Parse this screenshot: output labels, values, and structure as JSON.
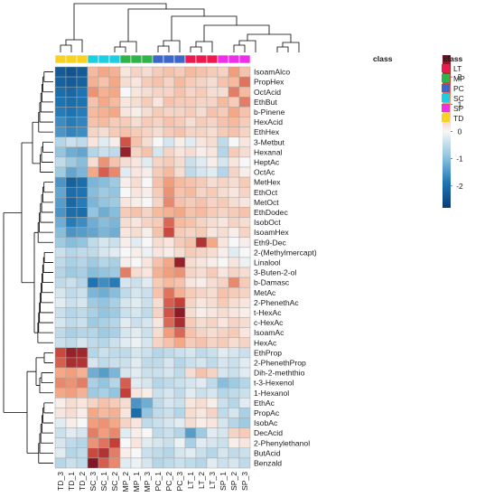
{
  "chart_data": {
    "type": "heatmap",
    "annotation_label": "class",
    "legend_title": "class",
    "classes": [
      {
        "name": "LT",
        "color": "#ee1a4f"
      },
      {
        "name": "MP",
        "color": "#2fb34a"
      },
      {
        "name": "PC",
        "color": "#3d68c9"
      },
      {
        "name": "SC",
        "color": "#1ccfe0"
      },
      {
        "name": "SP",
        "color": "#ee2ee8"
      },
      {
        "name": "TD",
        "color": "#f7d21e"
      }
    ],
    "columns": [
      "TD_3",
      "TD_1",
      "TD_2",
      "SC_3",
      "SC_1",
      "SC_2",
      "MP_2",
      "MP_1",
      "MP_3",
      "PC_1",
      "PC_2",
      "PC_3",
      "LT_1",
      "LT_2",
      "LT_3",
      "SP_1",
      "SP_2",
      "SP_3"
    ],
    "column_class": [
      "TD",
      "TD",
      "TD",
      "SC",
      "SC",
      "SC",
      "MP",
      "MP",
      "MP",
      "PC",
      "PC",
      "PC",
      "LT",
      "LT",
      "LT",
      "SP",
      "SP",
      "SP"
    ],
    "rows": [
      "IsoamAlco",
      "PropHex",
      "OctAcid",
      "EthBut",
      "b-Pinene",
      "HexAcid",
      "EthHex",
      "3-Metbut",
      "Hexanal",
      "HeptAc",
      "OctAc",
      "MetHex",
      "EthOct",
      "MetOct",
      "EthDodec",
      "IsobOct",
      "IsoamHex",
      "Eth9-Dec",
      "2-(Methylmercapt)",
      "Linalool",
      "3-Buten-2-ol",
      "b-Damasc",
      "MetAc",
      "2-PhenethAc",
      "t-HexAc",
      "c-HexAc",
      "IsoamAc",
      "HexAc",
      "EthProp",
      "2-PhenethProp",
      "Dih-2-meththio",
      "t-3-Hexenol",
      "1-Hexanol",
      "EthAc",
      "PropAc",
      "IsobAc",
      "DecAcid",
      "2-Phenylethanol",
      "ButAcid",
      "Benzald"
    ],
    "values": [
      [
        -2.3,
        -2.4,
        -2.3,
        0.7,
        0.9,
        0.8,
        0.2,
        0.4,
        0.3,
        0.5,
        0.6,
        0.5,
        0.7,
        0.6,
        0.5,
        0.4,
        1.0,
        0.6
      ],
      [
        -2.2,
        -2.3,
        -2.2,
        0.8,
        0.6,
        0.9,
        0.3,
        0.2,
        0.5,
        0.6,
        0.4,
        0.7,
        0.5,
        0.4,
        0.3,
        0.6,
        0.7,
        1.4
      ],
      [
        -2.0,
        -2.1,
        -1.9,
        1.1,
        0.8,
        0.9,
        0.0,
        0.2,
        0.3,
        0.4,
        0.4,
        0.6,
        0.4,
        0.5,
        0.3,
        0.3,
        1.3,
        0.7
      ],
      [
        -1.9,
        -2.0,
        -1.9,
        0.6,
        0.9,
        0.7,
        0.2,
        0.3,
        0.5,
        0.2,
        0.6,
        0.5,
        0.5,
        0.4,
        0.4,
        0.7,
        0.5,
        1.3
      ],
      [
        -1.8,
        -1.9,
        -1.8,
        0.7,
        0.8,
        0.9,
        0.2,
        0.1,
        0.3,
        0.5,
        0.4,
        0.4,
        0.5,
        0.3,
        0.6,
        0.5,
        0.9,
        0.6
      ],
      [
        -1.6,
        -1.8,
        -1.7,
        0.6,
        0.7,
        0.5,
        0.5,
        0.3,
        0.5,
        0.4,
        0.6,
        0.5,
        0.3,
        0.5,
        0.4,
        0.6,
        0.7,
        0.5
      ],
      [
        -1.5,
        -1.7,
        -1.6,
        0.4,
        0.3,
        0.5,
        0.6,
        0.5,
        0.4,
        0.3,
        0.5,
        0.6,
        0.4,
        0.4,
        0.3,
        0.5,
        0.6,
        0.4
      ],
      [
        -0.6,
        -0.4,
        -0.5,
        0.2,
        -0.2,
        0.1,
        1.7,
        0.6,
        0.3,
        0.0,
        -0.3,
        0.1,
        -0.2,
        0.2,
        0.3,
        -0.5,
        0.0,
        0.2
      ],
      [
        -0.9,
        -1.2,
        -1.3,
        -0.6,
        -0.4,
        -0.5,
        2.4,
        0.4,
        0.6,
        -0.3,
        0.4,
        0.2,
        0.3,
        0.1,
        0.2,
        -0.6,
        0.5,
        0.3
      ],
      [
        -0.5,
        -0.8,
        -1.0,
        0.3,
        1.1,
        0.6,
        0.3,
        0.2,
        -0.2,
        0.4,
        0.5,
        0.3,
        -0.4,
        -0.2,
        0.1,
        -0.3,
        0.2,
        0.0
      ],
      [
        -0.8,
        -1.3,
        -1.1,
        0.9,
        1.6,
        1.2,
        -0.2,
        0.2,
        0.1,
        0.5,
        0.7,
        0.3,
        -0.5,
        -0.3,
        -0.2,
        -0.6,
        0.4,
        0.1
      ],
      [
        -1.5,
        -2.2,
        -2.0,
        -1.1,
        -1.0,
        -0.8,
        0.1,
        0.3,
        0.0,
        0.6,
        1.0,
        0.7,
        0.6,
        0.5,
        0.3,
        0.4,
        0.3,
        0.5
      ],
      [
        -1.3,
        -2.0,
        -1.9,
        -1.0,
        -0.8,
        -0.9,
        0.0,
        0.2,
        0.1,
        0.5,
        1.1,
        0.6,
        0.7,
        0.4,
        0.5,
        0.3,
        0.2,
        0.4
      ],
      [
        -1.4,
        -2.1,
        -1.8,
        -1.1,
        -0.9,
        -0.8,
        0.2,
        0.1,
        0.0,
        0.4,
        1.2,
        0.6,
        0.5,
        0.6,
        0.4,
        0.5,
        0.3,
        0.2
      ],
      [
        -1.5,
        -2.0,
        -2.0,
        -0.9,
        -1.2,
        -1.0,
        0.5,
        0.6,
        0.4,
        0.7,
        0.8,
        0.9,
        0.6,
        0.7,
        0.5,
        0.4,
        0.5,
        0.6
      ],
      [
        -1.2,
        -1.8,
        -1.6,
        -1.2,
        -1.0,
        -1.1,
        0.3,
        0.2,
        0.4,
        0.5,
        1.5,
        0.7,
        0.6,
        0.4,
        0.3,
        0.2,
        0.4,
        0.3
      ],
      [
        -1.0,
        -1.5,
        -1.4,
        -1.3,
        -1.1,
        -1.2,
        0.2,
        0.3,
        0.1,
        0.6,
        1.8,
        0.5,
        0.4,
        0.5,
        0.2,
        0.3,
        0.1,
        0.4
      ],
      [
        -0.8,
        -1.0,
        -0.9,
        -0.5,
        -0.3,
        -0.4,
        0.1,
        -0.2,
        0.0,
        0.3,
        0.2,
        0.5,
        0.6,
        2.1,
        0.9,
        0.2,
        0.0,
        0.1
      ],
      [
        -0.4,
        -0.6,
        -0.5,
        -0.5,
        -0.3,
        -0.2,
        0.0,
        0.1,
        -0.1,
        0.2,
        0.1,
        0.3,
        0.5,
        0.4,
        0.3,
        0.1,
        -0.2,
        0.0
      ],
      [
        -0.5,
        -0.7,
        -0.6,
        -0.8,
        -0.6,
        -0.7,
        0.1,
        0.0,
        0.2,
        0.6,
        0.9,
        2.4,
        0.3,
        0.2,
        0.1,
        0.0,
        0.2,
        -0.1
      ],
      [
        -0.6,
        -0.8,
        -0.7,
        -1.0,
        -0.9,
        -0.8,
        1.3,
        0.3,
        0.2,
        0.8,
        1.0,
        1.1,
        0.4,
        0.3,
        0.5,
        0.2,
        0.4,
        0.3
      ],
      [
        -0.5,
        -0.4,
        -0.6,
        -1.9,
        -1.6,
        -1.8,
        -0.3,
        -0.4,
        -0.2,
        0.5,
        0.7,
        0.6,
        0.2,
        0.1,
        0.3,
        0.4,
        1.2,
        0.5
      ],
      [
        -0.3,
        -0.5,
        -0.4,
        -1.1,
        -1.2,
        -1.0,
        -0.5,
        -0.3,
        -0.4,
        0.6,
        1.4,
        0.8,
        0.5,
        0.4,
        0.3,
        0.6,
        0.5,
        0.4
      ],
      [
        -0.2,
        -0.4,
        -0.3,
        -0.8,
        -0.9,
        -0.7,
        -0.3,
        -0.2,
        -0.4,
        0.3,
        1.6,
        1.9,
        0.4,
        0.2,
        0.3,
        0.5,
        0.3,
        0.2
      ],
      [
        -0.4,
        -0.6,
        -0.5,
        -0.7,
        -0.9,
        -0.8,
        -0.4,
        -0.3,
        -0.5,
        0.4,
        1.7,
        2.5,
        0.3,
        0.1,
        0.2,
        0.3,
        0.2,
        0.1
      ],
      [
        -0.3,
        -0.5,
        -0.4,
        -0.8,
        -0.7,
        -0.6,
        -0.2,
        -0.4,
        -0.3,
        0.2,
        1.5,
        2.2,
        0.5,
        0.3,
        0.4,
        0.2,
        0.4,
        0.3
      ],
      [
        -0.5,
        -0.7,
        -0.6,
        -0.6,
        -0.8,
        -0.7,
        -0.3,
        -0.2,
        -0.4,
        0.3,
        1.0,
        1.5,
        0.6,
        0.4,
        0.3,
        0.4,
        0.5,
        0.2
      ],
      [
        -0.4,
        -0.5,
        -0.3,
        -0.5,
        -0.6,
        -0.4,
        -0.2,
        -0.1,
        -0.3,
        0.4,
        0.6,
        0.9,
        0.5,
        0.6,
        0.4,
        0.5,
        0.3,
        0.4
      ],
      [
        1.8,
        2.4,
        2.3,
        -0.6,
        -0.4,
        -0.5,
        -0.5,
        -0.3,
        -0.4,
        -0.6,
        -0.5,
        -0.4,
        -0.3,
        -0.5,
        -0.4,
        -0.2,
        -0.3,
        -0.4
      ],
      [
        1.6,
        2.2,
        2.1,
        -0.3,
        -0.5,
        -0.4,
        -0.4,
        -0.2,
        -0.5,
        -0.5,
        -0.3,
        -0.6,
        -0.4,
        -0.3,
        -0.5,
        -0.3,
        -0.4,
        -0.2
      ],
      [
        0.9,
        1.0,
        0.8,
        -1.2,
        -1.4,
        -1.1,
        -0.3,
        -0.2,
        -0.4,
        -0.4,
        -0.3,
        -0.5,
        0.3,
        0.6,
        0.4,
        -0.3,
        -0.4,
        -0.2
      ],
      [
        1.2,
        1.1,
        1.3,
        -0.7,
        -0.9,
        -0.6,
        1.6,
        -0.2,
        -0.3,
        -0.6,
        -0.5,
        -0.4,
        -0.3,
        -0.2,
        -0.5,
        -1.0,
        -0.8,
        -0.6
      ],
      [
        0.9,
        1.0,
        0.8,
        -0.8,
        -0.7,
        -0.9,
        1.9,
        0.2,
        0.1,
        -0.4,
        -0.3,
        -0.5,
        -0.2,
        -0.4,
        -0.3,
        -0.6,
        -0.5,
        -0.4
      ],
      [
        0.1,
        0.3,
        0.2,
        0.4,
        0.6,
        0.5,
        0.3,
        -1.5,
        -1.2,
        -0.5,
        -0.3,
        -0.4,
        0.2,
        0.3,
        0.1,
        -0.4,
        -0.6,
        -0.2
      ],
      [
        0.2,
        0.3,
        0.1,
        0.9,
        0.7,
        0.8,
        0.2,
        -2.0,
        -0.9,
        -0.5,
        -0.4,
        -0.6,
        0.3,
        0.2,
        0.4,
        -0.5,
        -0.3,
        -0.7
      ],
      [
        -0.2,
        0.1,
        0.0,
        1.0,
        1.1,
        0.9,
        0.4,
        0.2,
        -0.5,
        -0.4,
        -0.3,
        -0.2,
        0.3,
        0.1,
        0.2,
        -0.3,
        -0.6,
        -0.8
      ],
      [
        -0.4,
        -0.2,
        -0.3,
        1.3,
        1.0,
        1.2,
        -0.2,
        0.1,
        0.0,
        -0.5,
        -0.4,
        -0.6,
        -1.4,
        -0.8,
        -0.2,
        -0.3,
        0.4,
        0.5
      ],
      [
        -0.3,
        -0.5,
        -0.6,
        1.1,
        1.4,
        1.9,
        0.0,
        0.2,
        -0.2,
        -0.3,
        -0.4,
        -0.1,
        -0.7,
        -0.2,
        -0.3,
        -0.4,
        0.1,
        0.2
      ],
      [
        -0.2,
        -0.6,
        -0.5,
        1.8,
        2.1,
        1.3,
        0.1,
        0.0,
        -0.4,
        -0.5,
        -0.6,
        -0.3,
        -0.2,
        -0.4,
        -0.6,
        -0.3,
        -0.5,
        -0.4
      ],
      [
        -0.6,
        -0.4,
        -0.5,
        2.6,
        1.6,
        1.2,
        -0.2,
        -0.1,
        -0.3,
        -0.6,
        -0.5,
        -0.4,
        -0.5,
        -0.6,
        -0.2,
        -0.4,
        -0.3,
        -0.5
      ]
    ],
    "color_scale": {
      "min": -2.8,
      "max": 2.8,
      "ticks": [
        2,
        1,
        0,
        -1,
        -2
      ],
      "colors": [
        "#0a3b74",
        "#1f76b4",
        "#8fc3df",
        "#f7f7f7",
        "#f5a582",
        "#c8413a",
        "#6e0b1e"
      ]
    }
  }
}
